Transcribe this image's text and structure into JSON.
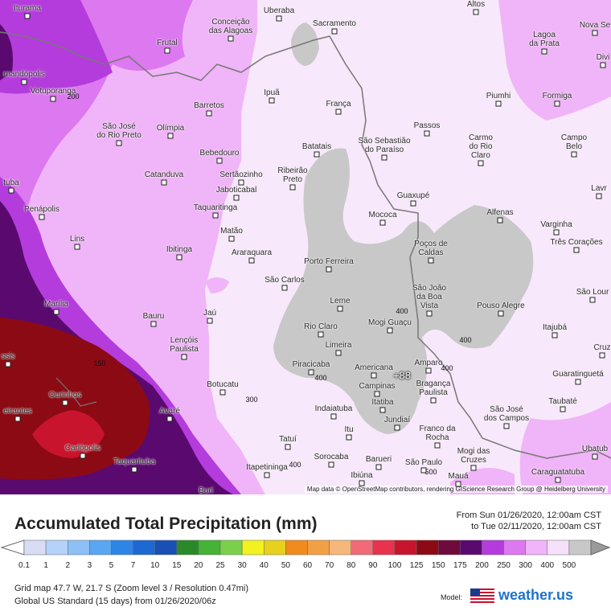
{
  "map": {
    "attribution": "Map data © OpenStreetMap contributors, rendering GIScience Research Group @ Heidelberg University",
    "cities": [
      {
        "name": "Iturama"
      },
      {
        "name": "Conceição\ndas Alagoas"
      },
      {
        "name": "Uberaba"
      },
      {
        "name": "Sacramento"
      },
      {
        "name": "Altos"
      },
      {
        "name": "Nova Se"
      },
      {
        "name": "Frutal"
      },
      {
        "name": "Lagoa\nda Prata"
      },
      {
        "name": "Divi"
      },
      {
        "name": "rnandópolis"
      },
      {
        "name": "Votuporanga"
      },
      {
        "name": "Ipuã"
      },
      {
        "name": "Barretos"
      },
      {
        "name": "França"
      },
      {
        "name": "Piumhi"
      },
      {
        "name": "Formiga"
      },
      {
        "name": "São José\ndo Rio Preto"
      },
      {
        "name": "Olímpia"
      },
      {
        "name": "Passos"
      },
      {
        "name": "Carmo\ndo Rio\nClaro"
      },
      {
        "name": "Campo\nBelo"
      },
      {
        "name": "Bebedouro"
      },
      {
        "name": "Batatais"
      },
      {
        "name": "São Sebastião\ndo Paraíso"
      },
      {
        "name": "Catanduva"
      },
      {
        "name": "Sertãozinho"
      },
      {
        "name": "Ribeirão\nPreto"
      },
      {
        "name": "Jaboticabal"
      },
      {
        "name": "tuba"
      },
      {
        "name": "Lavr"
      },
      {
        "name": "Guaxupé"
      },
      {
        "name": "Taquaritinga"
      },
      {
        "name": "Penápolis"
      },
      {
        "name": "Mococa"
      },
      {
        "name": "Alfenas"
      },
      {
        "name": "Varginha"
      },
      {
        "name": "Matão"
      },
      {
        "name": "Lins"
      },
      {
        "name": "Três Corações"
      },
      {
        "name": "Poços de\nCaldas"
      },
      {
        "name": "Ibitinga"
      },
      {
        "name": "Araraquara"
      },
      {
        "name": "Porto Ferreira"
      },
      {
        "name": "São Carlos"
      },
      {
        "name": "São João\nda Boa\nVista"
      },
      {
        "name": "São Lour"
      },
      {
        "name": "Leme"
      },
      {
        "name": "Pouso Alegre"
      },
      {
        "name": "Marília"
      },
      {
        "name": "Bauru"
      },
      {
        "name": "Jaú"
      },
      {
        "name": "Rio Claro"
      },
      {
        "name": "Mogi Guaçu"
      },
      {
        "name": "Itajubá"
      },
      {
        "name": "Lençóis\nPaulista"
      },
      {
        "name": "Limeira"
      },
      {
        "name": "Amparo"
      },
      {
        "name": "Cruz"
      },
      {
        "name": "ssis"
      },
      {
        "name": "Piracicaba"
      },
      {
        "name": "Americana"
      },
      {
        "name": "Guaratinguetá"
      },
      {
        "name": "Botucatu"
      },
      {
        "name": "Campinas"
      },
      {
        "name": "Bragança\nPaulista"
      },
      {
        "name": "Ourinhos"
      },
      {
        "name": "Itatiba"
      },
      {
        "name": "Taubaté"
      },
      {
        "name": "eirantes"
      },
      {
        "name": "Avaré"
      },
      {
        "name": "Indaiatuba"
      },
      {
        "name": "Jundiaí"
      },
      {
        "name": "São José\ndos Campos"
      },
      {
        "name": "Itu"
      },
      {
        "name": "Franco da\nRocha"
      },
      {
        "name": "Carlópolis"
      },
      {
        "name": "Tatuí"
      },
      {
        "name": "Ubatub"
      },
      {
        "name": "Taquarituba"
      },
      {
        "name": "Sorocaba"
      },
      {
        "name": "Barueri"
      },
      {
        "name": "São Paulo"
      },
      {
        "name": "Mogi das\nCruzes"
      },
      {
        "name": "Itapetininga"
      },
      {
        "name": "Ibiúna"
      },
      {
        "name": "Caraguatatuba"
      },
      {
        "name": "Mauá"
      },
      {
        "name": "Buri"
      }
    ],
    "iso_labels": [
      "200",
      "150",
      "300",
      "400",
      "400",
      "400",
      "400",
      "400",
      "500"
    ],
    "center_value": "+88"
  },
  "header": {
    "title": "Accumulated Total Precipitation (mm)",
    "from": "From Sun 01/26/2020, 12:00am CST",
    "to": "to Tue 02/11/2020, 12:00am CST"
  },
  "legend": {
    "labels": [
      "0.1",
      "1",
      "2",
      "3",
      "5",
      "7",
      "10",
      "15",
      "20",
      "25",
      "30",
      "40",
      "50",
      "60",
      "70",
      "80",
      "90",
      "100",
      "125",
      "150",
      "175",
      "200",
      "250",
      "300",
      "400",
      "500"
    ],
    "colors": [
      "#d8dcf5",
      "#b4d2fa",
      "#8cc0f7",
      "#5aa6f2",
      "#2d85e8",
      "#1e68d2",
      "#1a4fb4",
      "#2a8a2a",
      "#44b336",
      "#7ad04a",
      "#f2f21e",
      "#e6d21e",
      "#f08c1e",
      "#f2a046",
      "#f5b87a",
      "#f06a78",
      "#e8324e",
      "#c8142c",
      "#8c0a14",
      "#6e0a3c",
      "#5a0a6e",
      "#b43cdc",
      "#dc78f0",
      "#f0b4f8",
      "#f5e1fa",
      "#c8c8c8"
    ]
  },
  "info": {
    "line1": "Grid map 47.7 W, 21.7 S (Zoom level 3 / Resolution 0.47mi)",
    "line2": "Global US Standard (15 days)  from  01/26/2020/06z",
    "model_label": "Model:",
    "brand": "weather.us"
  }
}
